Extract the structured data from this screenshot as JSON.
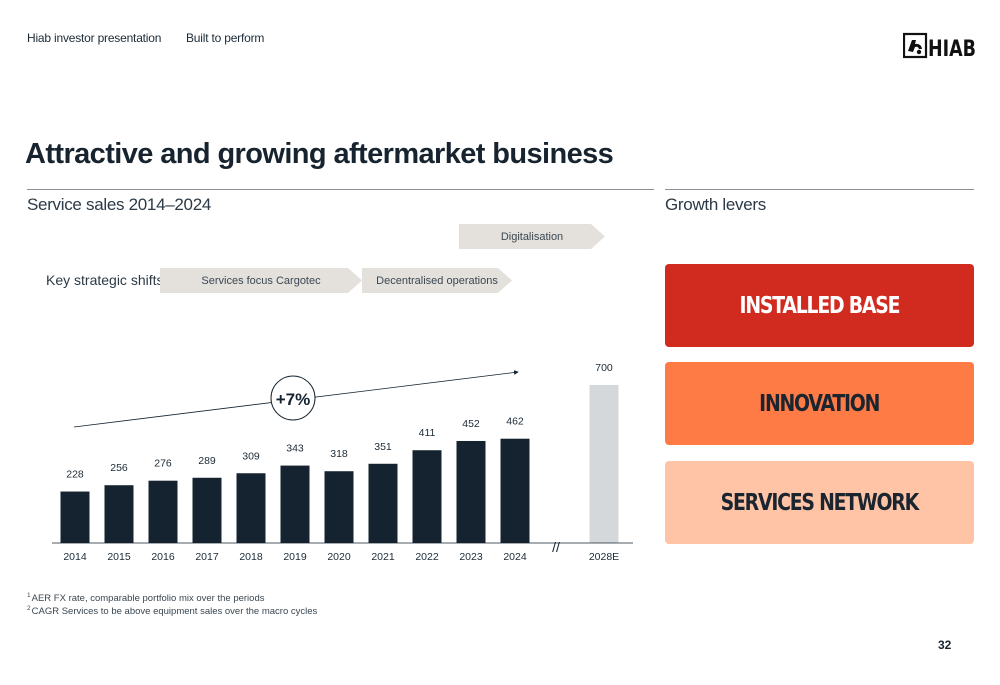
{
  "header": {
    "presentation": "Hiab investor presentation",
    "tagline": "Built to perform",
    "logo_text": "HIAB",
    "logo_icon": "hiab-crane-logo-icon"
  },
  "title": "Attractive and growing aftermarket business",
  "chart_section_title": "Service sales 2014–2024",
  "levers_title": "Growth levers",
  "strategic_shifts": {
    "label": "Key strategic shifts",
    "items": [
      "Services focus Cargotec",
      "Decentralised operations",
      "Digitalisation"
    ]
  },
  "chart_data": {
    "type": "bar",
    "categories": [
      "2014",
      "2015",
      "2016",
      "2017",
      "2018",
      "2019",
      "2020",
      "2021",
      "2022",
      "2023",
      "2024",
      "2028E"
    ],
    "values": [
      228,
      256,
      276,
      289,
      309,
      343,
      318,
      351,
      411,
      452,
      462,
      700
    ],
    "estimate_categories": [
      "2028E"
    ],
    "axis_break": "//",
    "cagr_annotation": "+7%",
    "colors": {
      "actual": "#14232f",
      "estimate": "#d5d8db"
    }
  },
  "growth_levers": [
    "INSTALLED BASE",
    "INNOVATION",
    "SERVICES NETWORK"
  ],
  "lever_colors": [
    "#d12b20",
    "#fe7b45",
    "#ffc3a6"
  ],
  "footnotes": [
    {
      "mark": "1",
      "text": "AER FX rate, comparable portfolio mix over the periods"
    },
    {
      "mark": "2",
      "text": "CAGR Services to be above equipment sales over the macro cycles"
    }
  ],
  "page_number": "32"
}
